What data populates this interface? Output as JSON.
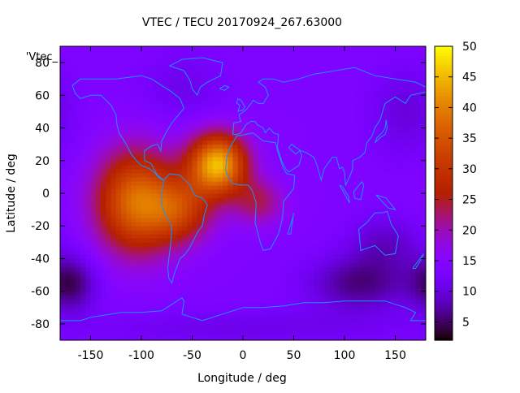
{
  "chart_data": {
    "type": "heatmap",
    "title": "VTEC / TECU 20170924_267.63000",
    "xlabel": "Longitude / deg",
    "ylabel": "Latitude / deg",
    "series_key": "'Vtec_",
    "xlim": [
      -180,
      180
    ],
    "ylim": [
      -90,
      90
    ],
    "x_ticks": [
      -150,
      -100,
      -50,
      0,
      50,
      100,
      150
    ],
    "x_tick_labels": [
      "-150",
      "-100",
      "-50",
      "0",
      "50",
      "100",
      "150"
    ],
    "y_ticks": [
      -80,
      -60,
      -40,
      -20,
      0,
      20,
      40,
      60,
      80
    ],
    "y_tick_labels": [
      "-80",
      "-60",
      "-40",
      "-20",
      "0",
      "20",
      "40",
      "60",
      "80"
    ],
    "colorbar": {
      "range": [
        2,
        50
      ],
      "ticks": [
        5,
        10,
        15,
        20,
        25,
        30,
        35,
        40,
        45,
        50
      ],
      "tick_labels": [
        "5",
        "10",
        "15",
        "20",
        "25",
        "30",
        "35",
        "40",
        "45",
        "50"
      ]
    },
    "grid": {
      "lon_step": 5,
      "lat_step": 2.5
    },
    "background_tec": 14,
    "features": [
      {
        "name": "EIA-americas",
        "lon": -105,
        "lat": -5,
        "sigLon": 28,
        "sigLat": 22,
        "amp": 24
      },
      {
        "name": "EIA-atlantic-north",
        "lon": -25,
        "lat": 18,
        "sigLon": 20,
        "sigLat": 13,
        "amp": 31
      },
      {
        "name": "EIA-south-america",
        "lon": -60,
        "lat": -10,
        "sigLon": 22,
        "sigLat": 14,
        "amp": 14
      },
      {
        "name": "EIA-africa-tail",
        "lon": 15,
        "lat": -5,
        "sigLon": 18,
        "sigLat": 10,
        "amp": 9
      },
      {
        "name": "south-pacific-low",
        "lon": -170,
        "lat": -55,
        "sigLon": 18,
        "sigLat": 12,
        "amp": -9
      },
      {
        "name": "south-indian-low",
        "lon": 115,
        "lat": -55,
        "sigLon": 35,
        "sigLat": 12,
        "amp": -8
      },
      {
        "name": "australia-low",
        "lon": 140,
        "lat": -30,
        "sigLon": 25,
        "sigLat": 12,
        "amp": -5
      },
      {
        "name": "north-pacific-low",
        "lon": 160,
        "lat": 50,
        "sigLon": 25,
        "sigLat": 20,
        "amp": -4
      },
      {
        "name": "atlantic-north-low",
        "lon": -60,
        "lat": 65,
        "sigLon": 30,
        "sigLat": 15,
        "amp": -3
      },
      {
        "name": "antarctic-low",
        "lon": 0,
        "lat": -82,
        "sigLon": 120,
        "sigLat": 8,
        "amp": -3
      }
    ],
    "coastlines": [
      {
        "name": "north-america",
        "points": [
          [
            -168,
            66
          ],
          [
            -160,
            70
          ],
          [
            -140,
            70
          ],
          [
            -125,
            70
          ],
          [
            -100,
            72
          ],
          [
            -90,
            70
          ],
          [
            -80,
            66
          ],
          [
            -70,
            62
          ],
          [
            -62,
            58
          ],
          [
            -58,
            52
          ],
          [
            -65,
            47
          ],
          [
            -70,
            43
          ],
          [
            -75,
            38
          ],
          [
            -80,
            32
          ],
          [
            -81,
            26
          ],
          [
            -84,
            30
          ],
          [
            -90,
            29
          ],
          [
            -97,
            26
          ],
          [
            -97,
            20
          ],
          [
            -90,
            18
          ],
          [
            -88,
            15
          ],
          [
            -84,
            11
          ],
          [
            -80,
            9
          ],
          [
            -78,
            8
          ],
          [
            -82,
            9
          ],
          [
            -86,
            12
          ],
          [
            -92,
            15
          ],
          [
            -100,
            17
          ],
          [
            -105,
            20
          ],
          [
            -110,
            24
          ],
          [
            -115,
            30
          ],
          [
            -118,
            33
          ],
          [
            -122,
            37
          ],
          [
            -124,
            42
          ],
          [
            -125,
            48
          ],
          [
            -130,
            54
          ],
          [
            -140,
            60
          ],
          [
            -150,
            60
          ],
          [
            -160,
            58
          ],
          [
            -165,
            61
          ],
          [
            -168,
            66
          ]
        ]
      },
      {
        "name": "south-america",
        "points": [
          [
            -78,
            8
          ],
          [
            -72,
            12
          ],
          [
            -62,
            11
          ],
          [
            -52,
            5
          ],
          [
            -48,
            -1
          ],
          [
            -40,
            -3
          ],
          [
            -35,
            -7
          ],
          [
            -38,
            -13
          ],
          [
            -40,
            -20
          ],
          [
            -44,
            -23
          ],
          [
            -48,
            -28
          ],
          [
            -53,
            -34
          ],
          [
            -58,
            -38
          ],
          [
            -62,
            -40
          ],
          [
            -65,
            -45
          ],
          [
            -68,
            -50
          ],
          [
            -70,
            -55
          ],
          [
            -73,
            -52
          ],
          [
            -74,
            -46
          ],
          [
            -73,
            -40
          ],
          [
            -71,
            -30
          ],
          [
            -70,
            -20
          ],
          [
            -76,
            -14
          ],
          [
            -81,
            -5
          ],
          [
            -80,
            0
          ],
          [
            -78,
            8
          ]
        ]
      },
      {
        "name": "africa",
        "points": [
          [
            -17,
            15
          ],
          [
            -16,
            22
          ],
          [
            -13,
            28
          ],
          [
            -6,
            35
          ],
          [
            10,
            37
          ],
          [
            20,
            32
          ],
          [
            32,
            31
          ],
          [
            35,
            24
          ],
          [
            40,
            15
          ],
          [
            43,
            12
          ],
          [
            51,
            11
          ],
          [
            50,
            3
          ],
          [
            40,
            -5
          ],
          [
            39,
            -15
          ],
          [
            35,
            -25
          ],
          [
            27,
            -34
          ],
          [
            20,
            -35
          ],
          [
            17,
            -30
          ],
          [
            12,
            -18
          ],
          [
            13,
            -6
          ],
          [
            9,
            2
          ],
          [
            5,
            5
          ],
          [
            -3,
            5
          ],
          [
            -10,
            6
          ],
          [
            -15,
            10
          ],
          [
            -17,
            15
          ]
        ]
      },
      {
        "name": "eurasia",
        "points": [
          [
            -10,
            36
          ],
          [
            -9,
            43
          ],
          [
            -2,
            44
          ],
          [
            -4,
            48
          ],
          [
            3,
            51
          ],
          [
            8,
            55
          ],
          [
            10,
            57
          ],
          [
            15,
            55
          ],
          [
            20,
            55
          ],
          [
            25,
            60
          ],
          [
            22,
            65
          ],
          [
            15,
            68
          ],
          [
            20,
            70
          ],
          [
            30,
            70
          ],
          [
            40,
            68
          ],
          [
            55,
            70
          ],
          [
            70,
            73
          ],
          [
            90,
            75
          ],
          [
            110,
            77
          ],
          [
            130,
            72
          ],
          [
            150,
            70
          ],
          [
            170,
            68
          ],
          [
            180,
            65
          ],
          [
            180,
            62
          ],
          [
            165,
            60
          ],
          [
            160,
            55
          ],
          [
            150,
            59
          ],
          [
            140,
            55
          ],
          [
            135,
            45
          ],
          [
            130,
            40
          ],
          [
            127,
            35
          ],
          [
            122,
            31
          ],
          [
            120,
            25
          ],
          [
            115,
            22
          ],
          [
            108,
            20
          ],
          [
            108,
            15
          ],
          [
            105,
            10
          ],
          [
            101,
            5
          ],
          [
            100,
            13
          ],
          [
            98,
            16
          ],
          [
            95,
            15
          ],
          [
            92,
            22
          ],
          [
            88,
            22
          ],
          [
            80,
            15
          ],
          [
            77,
            8
          ],
          [
            73,
            17
          ],
          [
            70,
            22
          ],
          [
            62,
            25
          ],
          [
            57,
            26
          ],
          [
            50,
            29
          ],
          [
            48,
            30
          ],
          [
            45,
            28
          ],
          [
            52,
            24
          ],
          [
            56,
            26
          ],
          [
            58,
            23
          ],
          [
            55,
            17
          ],
          [
            45,
            13
          ],
          [
            42,
            15
          ],
          [
            38,
            20
          ],
          [
            34,
            28
          ],
          [
            35,
            36
          ],
          [
            30,
            37
          ],
          [
            26,
            40
          ],
          [
            22,
            37
          ],
          [
            20,
            40
          ],
          [
            14,
            42
          ],
          [
            12,
            44
          ],
          [
            8,
            44
          ],
          [
            3,
            42
          ],
          [
            -2,
            37
          ],
          [
            -6,
            36
          ],
          [
            -10,
            36
          ]
        ]
      },
      {
        "name": "australia",
        "points": [
          [
            114,
            -22
          ],
          [
            122,
            -18
          ],
          [
            130,
            -12
          ],
          [
            137,
            -12
          ],
          [
            142,
            -11
          ],
          [
            146,
            -19
          ],
          [
            153,
            -26
          ],
          [
            150,
            -37
          ],
          [
            140,
            -38
          ],
          [
            130,
            -32
          ],
          [
            116,
            -35
          ],
          [
            114,
            -22
          ]
        ]
      },
      {
        "name": "greenland",
        "points": [
          [
            -45,
            60
          ],
          [
            -42,
            65
          ],
          [
            -35,
            68
          ],
          [
            -22,
            72
          ],
          [
            -20,
            80
          ],
          [
            -40,
            83
          ],
          [
            -60,
            82
          ],
          [
            -72,
            78
          ],
          [
            -58,
            75
          ],
          [
            -52,
            69
          ],
          [
            -50,
            64
          ],
          [
            -45,
            60
          ]
        ]
      },
      {
        "name": "antarctica",
        "points": [
          [
            -180,
            -78
          ],
          [
            -160,
            -78
          ],
          [
            -150,
            -76
          ],
          [
            -120,
            -73
          ],
          [
            -100,
            -73
          ],
          [
            -80,
            -72
          ],
          [
            -70,
            -68
          ],
          [
            -60,
            -64
          ],
          [
            -58,
            -66
          ],
          [
            -60,
            -74
          ],
          [
            -40,
            -78
          ],
          [
            -20,
            -74
          ],
          [
            0,
            -70
          ],
          [
            20,
            -70
          ],
          [
            40,
            -69
          ],
          [
            60,
            -67
          ],
          [
            80,
            -67
          ],
          [
            100,
            -66
          ],
          [
            120,
            -66
          ],
          [
            140,
            -66
          ],
          [
            160,
            -70
          ],
          [
            170,
            -73
          ],
          [
            165,
            -78
          ],
          [
            180,
            -78
          ]
        ]
      },
      {
        "name": "madagascar",
        "points": [
          [
            44,
            -25
          ],
          [
            49,
            -15
          ],
          [
            50,
            -12
          ],
          [
            47,
            -25
          ],
          [
            44,
            -25
          ]
        ]
      },
      {
        "name": "uk",
        "points": [
          [
            -5,
            50
          ],
          [
            0,
            51
          ],
          [
            2,
            53
          ],
          [
            -2,
            57
          ],
          [
            -5,
            58
          ],
          [
            -6,
            55
          ],
          [
            -3,
            54
          ],
          [
            -5,
            50
          ]
        ]
      },
      {
        "name": "japan",
        "points": [
          [
            130,
            31
          ],
          [
            135,
            34
          ],
          [
            140,
            36
          ],
          [
            142,
            40
          ],
          [
            141,
            45
          ],
          [
            140,
            40
          ],
          [
            137,
            37
          ],
          [
            132,
            34
          ],
          [
            130,
            31
          ]
        ]
      },
      {
        "name": "new-zealand",
        "points": [
          [
            167,
            -46
          ],
          [
            173,
            -41
          ],
          [
            178,
            -37
          ],
          [
            175,
            -41
          ],
          [
            170,
            -46
          ],
          [
            167,
            -46
          ]
        ]
      },
      {
        "name": "borneo",
        "points": [
          [
            109,
            1
          ],
          [
            117,
            7
          ],
          [
            119,
            5
          ],
          [
            116,
            -4
          ],
          [
            110,
            -3
          ],
          [
            109,
            1
          ]
        ]
      },
      {
        "name": "sumatra",
        "points": [
          [
            95,
            5
          ],
          [
            105,
            -6
          ],
          [
            104,
            -2
          ],
          [
            98,
            4
          ],
          [
            95,
            5
          ]
        ]
      },
      {
        "name": "new-guinea",
        "points": [
          [
            131,
            -1
          ],
          [
            141,
            -3
          ],
          [
            150,
            -10
          ],
          [
            143,
            -9
          ],
          [
            137,
            -5
          ],
          [
            131,
            -1
          ]
        ]
      },
      {
        "name": "iceland",
        "points": [
          [
            -23,
            64
          ],
          [
            -18,
            66
          ],
          [
            -14,
            65
          ],
          [
            -18,
            63
          ],
          [
            -23,
            64
          ]
        ]
      }
    ]
  }
}
